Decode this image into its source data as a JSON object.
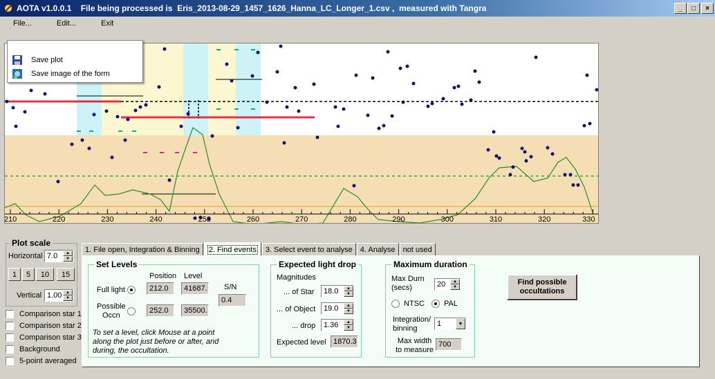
{
  "window": {
    "app_name": "AOTA v1.0.0.1",
    "title": "AOTA v1.0.0.1    File being processed is  Eris_2013-08-29_1457_1626_Hanna_LC_Longer_1.csv ,  measured with Tangra",
    "minimize": "_",
    "maximize": "□",
    "close": "×"
  },
  "menu": [
    "File...",
    "Edit...",
    "Exit"
  ],
  "file_menu_items": [
    "Save plot",
    "Save image of the form"
  ],
  "plot": {
    "x_ticks": [
      "210",
      "220",
      "230",
      "240",
      "250",
      "260",
      "270",
      "280",
      "290",
      "300",
      "310",
      "320",
      "330"
    ]
  },
  "plot_scale": {
    "title": "Plot scale",
    "horizontal_label": "Horizontal",
    "horizontal_value": "7.0",
    "buttons": [
      "1",
      "5",
      "10",
      "15"
    ],
    "vertical_label": "Vertical",
    "vertical_value": "1.00"
  },
  "checkboxes": [
    "Comparison star 1",
    "Comparison star 2",
    "Comparison star 3",
    "Background",
    "5-point averaged"
  ],
  "tabs": [
    "1.  File open, Integration & Binning",
    "2. Find events",
    "3. Select event to analyse",
    "4. Analyse",
    "not used"
  ],
  "set_levels": {
    "title": "Set Levels",
    "position_header": "Position",
    "level_header": "Level",
    "full_light_label": "Full light",
    "full_light_position": "212.0",
    "full_light_level": "41687.",
    "possible_occn_label": "Possible\nOccn",
    "possible_occn_position": "252.0",
    "possible_occn_level": "35500.",
    "sn_label": "S/N",
    "sn_value": "0.4",
    "instructions": "To set a level, click Mouse at a point along the plot just before or after, and during, the occultation."
  },
  "expected_drop": {
    "title": "Expected light drop",
    "magnitudes_label": "Magnitudes",
    "star_label": "... of Star",
    "star_value": "18.0",
    "object_label": "... of Object",
    "object_value": "19.0",
    "drop_label": "... drop",
    "drop_value": "1.36",
    "expected_level_label": "Expected level",
    "expected_level_value": "1870.3"
  },
  "max_duration": {
    "title": "Maximum duration",
    "max_durn_label": "Max Durn\n(secs)",
    "max_durn_value": "20",
    "ntsc_label": "NTSC",
    "pal_label": "PAL",
    "integration_label": "Integration/\nbinning",
    "integration_value": "1",
    "max_width_label": "Max width\nto measure",
    "max_width_value": "700"
  },
  "find_button": "Find possible\noccultations"
}
